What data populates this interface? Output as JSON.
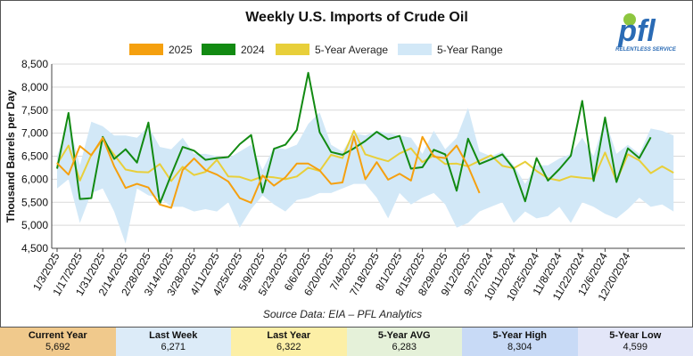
{
  "chart_data": {
    "type": "line",
    "title": "Weekly U.S. Imports of Crude Oil",
    "ylabel": "Thousand Barrels per Day",
    "xlabel": "",
    "ylim": [
      4500,
      8500
    ],
    "yticks": [
      4500,
      5000,
      5500,
      6000,
      6500,
      7000,
      7500,
      8000,
      8500
    ],
    "ytick_labels": [
      "4,500",
      "5,000",
      "5,500",
      "6,000",
      "6,500",
      "7,000",
      "7,500",
      "8,000",
      "8,500"
    ],
    "xtick_labels": [
      "1/3/2025",
      "1/17/2025",
      "1/31/2025",
      "2/14/2025",
      "2/28/2025",
      "3/14/2025",
      "3/28/2025",
      "4/11/2025",
      "4/25/2025",
      "5/9/2025",
      "5/23/2025",
      "6/6/2025",
      "6/20/2025",
      "7/4/2025",
      "7/18/2025",
      "8/1/2025",
      "8/15/2025",
      "8/29/2025",
      "9/12/2025",
      "9/27/2024",
      "10/11/2024",
      "10/25/2024",
      "11/8/2024",
      "11/22/2024",
      "12/6/2024",
      "12/20/2024"
    ],
    "grid": true,
    "legend_position": "top",
    "source": "Source Data: EIA – PFL Analytics",
    "series": [
      {
        "name": "2025",
        "color": "#F5A00F",
        "values": [
          6350,
          6100,
          6720,
          6520,
          6900,
          6280,
          5810,
          5900,
          5820,
          5450,
          5380,
          6200,
          6450,
          6200,
          6100,
          5950,
          5590,
          5490,
          6080,
          5860,
          6040,
          6340,
          6340,
          6190,
          5900,
          5930,
          6930,
          6000,
          6370,
          5990,
          6120,
          5970,
          6920,
          6490,
          6460,
          6730,
          6280,
          5700
        ]
      },
      {
        "name": "2024",
        "color": "#128A12",
        "values": [
          6230,
          7440,
          5570,
          5590,
          6920,
          6440,
          6650,
          6360,
          7230,
          5470,
          6100,
          6700,
          6620,
          6420,
          6460,
          6480,
          6760,
          6960,
          5710,
          6660,
          6750,
          7070,
          8310,
          7020,
          6590,
          6530,
          6670,
          6830,
          7030,
          6870,
          6940,
          6230,
          6260,
          6640,
          6540,
          5750,
          6880,
          6330,
          6430,
          6540,
          6230,
          5520,
          6460,
          5970,
          6220,
          6510,
          7700,
          5960,
          7340,
          5940,
          6670,
          6460,
          6910
        ]
      },
      {
        "name": "5-Year Average",
        "color": "#E8CF3A",
        "values": [
          6330,
          6730,
          5970,
          6530,
          6860,
          6530,
          6210,
          6160,
          6150,
          6330,
          5960,
          6270,
          6090,
          6160,
          6420,
          6060,
          6050,
          5970,
          6060,
          6040,
          6000,
          6060,
          6250,
          6180,
          6530,
          6460,
          7050,
          6540,
          6460,
          6390,
          6560,
          6670,
          6370,
          6520,
          6330,
          6340,
          6280,
          6400,
          6520,
          6290,
          6240,
          6380,
          6180,
          6020,
          5970,
          6060,
          6030,
          6010,
          6580,
          5960,
          6540,
          6410,
          6130,
          6280,
          6140
        ]
      },
      {
        "name": "5-Year Range",
        "color": "#D2E8F7",
        "upper": [
          6500,
          7250,
          6300,
          7250,
          7150,
          6950,
          6950,
          6900,
          7150,
          6700,
          6650,
          6900,
          6550,
          6550,
          6500,
          6450,
          6600,
          6750,
          6200,
          6700,
          6650,
          6750,
          7200,
          7450,
          6750,
          6600,
          7000,
          6950,
          7050,
          7000,
          6950,
          6900,
          6550,
          7050,
          6650,
          6900,
          7550,
          6600,
          6500,
          6600,
          6300,
          5900,
          6300,
          6300,
          6450,
          6550,
          6900,
          6500,
          7300,
          6550,
          6750,
          6550,
          7100,
          7050,
          6950
        ],
        "lower": [
          5800,
          6000,
          5050,
          5700,
          5800,
          5300,
          4600,
          5800,
          5650,
          5600,
          5400,
          5400,
          5300,
          5350,
          5300,
          5500,
          4950,
          5350,
          5650,
          5450,
          5300,
          5550,
          5600,
          5700,
          5700,
          5800,
          5900,
          5900,
          5600,
          5150,
          5700,
          5450,
          5600,
          5700,
          5450,
          4950,
          5050,
          5300,
          5400,
          5500,
          5050,
          5300,
          5150,
          5200,
          5400,
          5050,
          5500,
          5400,
          5250,
          5150,
          5350,
          5600,
          5400,
          5450,
          5300
        ]
      }
    ]
  },
  "header": {
    "title": "Weekly U.S. Imports of Crude Oil",
    "logo_text": "pfl",
    "logo_tagline": "RELENTLESS SERVICE"
  },
  "legend": [
    {
      "label": "2025",
      "color": "#F5A00F"
    },
    {
      "label": "2024",
      "color": "#128A12"
    },
    {
      "label": "5-Year Average",
      "color": "#E8CF3A"
    },
    {
      "label": "5-Year Range",
      "color": "#D2E8F7"
    }
  ],
  "source_note": "Source Data: EIA – PFL Analytics",
  "footer": [
    {
      "label": "Current Year",
      "value": "5,692",
      "bg": "#F0C98C"
    },
    {
      "label": "Last Week",
      "value": "6,271",
      "bg": "#DCEBF8"
    },
    {
      "label": "Last Year",
      "value": "6,322",
      "bg": "#FCEFA6"
    },
    {
      "label": "5-Year AVG",
      "value": "6,283",
      "bg": "#E5F1D9"
    },
    {
      "label": "5-Year High",
      "value": "8,304",
      "bg": "#C8DAF6"
    },
    {
      "label": "5-Year Low",
      "value": "4,599",
      "bg": "#E3E6F8"
    }
  ]
}
